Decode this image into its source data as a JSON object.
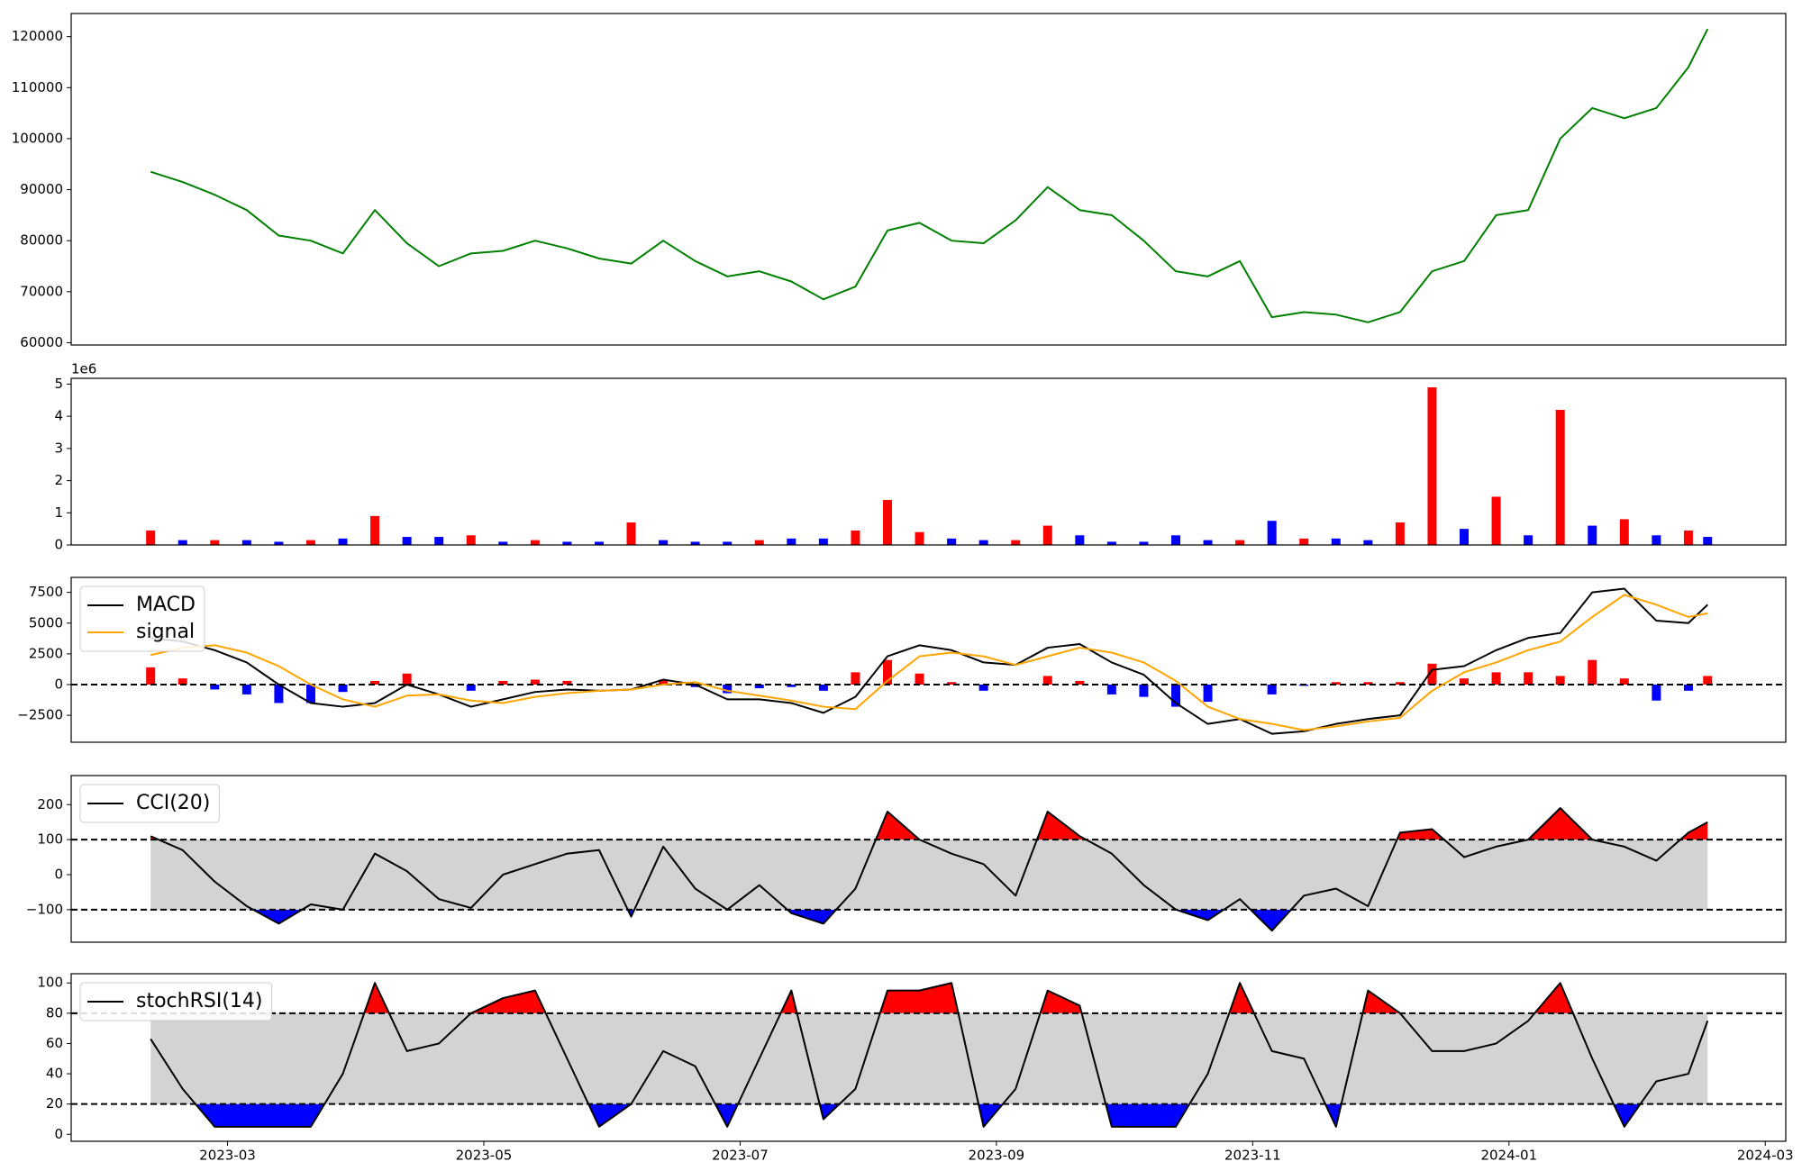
{
  "chart_data": [
    {
      "type": "line",
      "x": [
        2.4,
        2.65,
        2.9,
        3.15,
        3.4,
        3.65,
        3.9,
        4.15,
        4.4,
        4.65,
        4.9,
        5.15,
        5.4,
        5.65,
        5.9,
        6.15,
        6.4,
        6.65,
        6.9,
        7.15,
        7.4,
        7.65,
        7.9,
        8.15,
        8.4,
        8.65,
        8.9,
        9.15,
        9.4,
        9.65,
        9.9,
        10.15,
        10.4,
        10.65,
        10.9,
        11.15,
        11.4,
        11.65,
        11.9,
        12.15,
        12.4,
        12.65,
        12.9,
        13.15,
        13.4,
        13.65,
        13.9,
        14.15,
        14.4,
        14.55
      ],
      "series": [
        {
          "color": "#008000",
          "values": [
            93500,
            91500,
            89000,
            86000,
            81000,
            80000,
            77500,
            86000,
            79500,
            75000,
            77500,
            78000,
            80000,
            78500,
            76500,
            75500,
            80000,
            76000,
            73000,
            74000,
            72000,
            68500,
            71000,
            82000,
            83500,
            80000,
            79500,
            84000,
            90500,
            86000,
            85000,
            80000,
            74000,
            73000,
            76000,
            65000,
            66000,
            65500,
            64000,
            66000,
            74000,
            76000,
            85000,
            86000,
            100000,
            106000,
            104000,
            106000,
            114000,
            121500
          ]
        }
      ],
      "xlim": [
        1.78,
        15.16
      ],
      "ylim": [
        59550,
        124530
      ],
      "yticks": [
        60000,
        70000,
        80000,
        90000,
        100000,
        110000,
        120000
      ]
    },
    {
      "type": "bar",
      "x": [
        2.4,
        2.65,
        2.9,
        3.15,
        3.4,
        3.65,
        3.9,
        4.15,
        4.4,
        4.65,
        4.9,
        5.15,
        5.4,
        5.65,
        5.9,
        6.15,
        6.4,
        6.65,
        6.9,
        7.15,
        7.4,
        7.65,
        7.9,
        8.15,
        8.4,
        8.65,
        8.9,
        9.15,
        9.4,
        9.65,
        9.9,
        10.15,
        10.4,
        10.65,
        10.9,
        11.15,
        11.4,
        11.65,
        11.9,
        12.15,
        12.4,
        12.65,
        12.9,
        13.15,
        13.4,
        13.65,
        13.9,
        14.15,
        14.4,
        14.55
      ],
      "values": [
        0.45,
        0.15,
        0.15,
        0.15,
        0.1,
        0.15,
        0.2,
        0.9,
        0.25,
        0.25,
        0.3,
        0.1,
        0.15,
        0.1,
        0.1,
        0.7,
        0.15,
        0.1,
        0.1,
        0.15,
        0.2,
        0.2,
        0.45,
        1.4,
        0.4,
        0.2,
        0.15,
        0.15,
        0.6,
        0.3,
        0.1,
        0.1,
        0.3,
        0.15,
        0.15,
        0.75,
        0.2,
        0.2,
        0.15,
        0.7,
        4.9,
        0.5,
        1.5,
        0.3,
        4.2,
        0.6,
        0.8,
        0.3,
        0.45,
        0.25
      ],
      "colors": [
        "#ff0000",
        "#0000ff",
        "#ff0000",
        "#0000ff",
        "#0000ff",
        "#ff0000",
        "#0000ff",
        "#ff0000",
        "#0000ff",
        "#0000ff",
        "#ff0000",
        "#0000ff",
        "#ff0000",
        "#0000ff",
        "#0000ff",
        "#ff0000",
        "#0000ff",
        "#0000ff",
        "#0000ff",
        "#ff0000",
        "#0000ff",
        "#0000ff",
        "#ff0000",
        "#ff0000",
        "#ff0000",
        "#0000ff",
        "#0000ff",
        "#ff0000",
        "#ff0000",
        "#0000ff",
        "#0000ff",
        "#0000ff",
        "#0000ff",
        "#0000ff",
        "#ff0000",
        "#0000ff",
        "#ff0000",
        "#0000ff",
        "#0000ff",
        "#ff0000",
        "#ff0000",
        "#0000ff",
        "#ff0000",
        "#0000ff",
        "#ff0000",
        "#0000ff",
        "#ff0000",
        "#0000ff",
        "#ff0000",
        "#0000ff"
      ],
      "offset_label": "1e6",
      "xlim": [
        1.78,
        15.16
      ],
      "ylim": [
        0,
        5.18
      ],
      "yticks": [
        0,
        1,
        2,
        3,
        4,
        5
      ]
    },
    {
      "type": "macd",
      "x": [
        2.4,
        2.65,
        2.9,
        3.15,
        3.4,
        3.65,
        3.9,
        4.15,
        4.4,
        4.65,
        4.9,
        5.15,
        5.4,
        5.65,
        5.9,
        6.15,
        6.4,
        6.65,
        6.9,
        7.15,
        7.4,
        7.65,
        7.9,
        8.15,
        8.4,
        8.65,
        8.9,
        9.15,
        9.4,
        9.65,
        9.9,
        10.15,
        10.4,
        10.65,
        10.9,
        11.15,
        11.4,
        11.65,
        11.9,
        12.15,
        12.4,
        12.65,
        12.9,
        13.15,
        13.4,
        13.65,
        13.9,
        14.15,
        14.4,
        14.55
      ],
      "series": [
        {
          "name": "MACD",
          "color": "#000000",
          "values": [
            3800,
            3500,
            2800,
            1800,
            0,
            -1500,
            -1800,
            -1500,
            0,
            -800,
            -1800,
            -1200,
            -600,
            -400,
            -500,
            -400,
            400,
            0,
            -1200,
            -1200,
            -1500,
            -2300,
            -1000,
            2300,
            3200,
            2800,
            1800,
            1600,
            3000,
            3300,
            1800,
            800,
            -1500,
            -3200,
            -2800,
            -4000,
            -3800,
            -3200,
            -2800,
            -2500,
            1200,
            1500,
            2800,
            3800,
            4200,
            7500,
            7800,
            5200,
            5000,
            6500
          ]
        },
        {
          "name": "signal",
          "color": "#ffa500",
          "values": [
            2400,
            3000,
            3200,
            2600,
            1500,
            0,
            -1200,
            -1800,
            -900,
            -800,
            -1300,
            -1500,
            -1000,
            -700,
            -500,
            -400,
            0,
            200,
            -500,
            -900,
            -1300,
            -1800,
            -2000,
            300,
            2300,
            2600,
            2300,
            1600,
            2300,
            3000,
            2600,
            1800,
            300,
            -1800,
            -2800,
            -3200,
            -3700,
            -3400,
            -3000,
            -2700,
            -500,
            1000,
            1800,
            2800,
            3500,
            5500,
            7300,
            6500,
            5500,
            5800
          ]
        }
      ],
      "histogram": {
        "values": [
          1400,
          500,
          -400,
          -800,
          -1500,
          -1500,
          -600,
          300,
          900,
          0,
          -500,
          300,
          400,
          300,
          0,
          0,
          400,
          -200,
          -700,
          -300,
          -200,
          -500,
          1000,
          2000,
          900,
          200,
          -500,
          0,
          700,
          300,
          -800,
          -1000,
          -1800,
          -1400,
          0,
          -800,
          -100,
          200,
          200,
          200,
          1700,
          500,
          1000,
          1000,
          700,
          2000,
          500,
          -1300,
          -500,
          700
        ],
        "positive_color": "#ff0000",
        "negative_color": "#0000ff"
      },
      "hline": 0,
      "legend": "upper left",
      "xlim": [
        1.78,
        15.16
      ],
      "ylim": [
        -4690,
        8720
      ],
      "yticks": [
        {
          "value": -2500,
          "label": "−2500"
        },
        0,
        2500,
        5000,
        7500
      ]
    },
    {
      "type": "band",
      "x": [
        2.4,
        2.65,
        2.9,
        3.15,
        3.4,
        3.65,
        3.9,
        4.15,
        4.4,
        4.65,
        4.9,
        5.15,
        5.4,
        5.65,
        5.9,
        6.15,
        6.4,
        6.65,
        6.9,
        7.15,
        7.4,
        7.65,
        7.9,
        8.15,
        8.4,
        8.65,
        8.9,
        9.15,
        9.4,
        9.65,
        9.9,
        10.15,
        10.4,
        10.65,
        10.9,
        11.15,
        11.4,
        11.65,
        11.9,
        12.15,
        12.4,
        12.65,
        12.9,
        13.15,
        13.4,
        13.65,
        13.9,
        14.15,
        14.4,
        14.55
      ],
      "series": [
        {
          "name": "CCI(20)",
          "color": "#000000",
          "values": [
            110,
            70,
            -20,
            -90,
            -140,
            -85,
            -100,
            60,
            10,
            -70,
            -95,
            0,
            30,
            60,
            70,
            -120,
            80,
            -40,
            -100,
            -30,
            -110,
            -140,
            -40,
            180,
            100,
            60,
            30,
            -60,
            180,
            110,
            60,
            -30,
            -100,
            -130,
            -70,
            -160,
            -60,
            -40,
            -90,
            120,
            130,
            50,
            80,
            100,
            190,
            100,
            80,
            40,
            120,
            150
          ]
        }
      ],
      "thresholds": [
        -100,
        100
      ],
      "band_color": "#d3d3d3",
      "upper_color": "#ff0000",
      "lower_color": "#0000ff",
      "legend": "upper left",
      "xlim": [
        1.78,
        15.16
      ],
      "ylim": [
        -193,
        283
      ],
      "yticks": [
        {
          "value": -100,
          "label": "−100"
        },
        0,
        100,
        200
      ]
    },
    {
      "type": "band",
      "x": [
        2.4,
        2.65,
        2.9,
        3.15,
        3.4,
        3.65,
        3.9,
        4.15,
        4.4,
        4.65,
        4.9,
        5.15,
        5.4,
        5.65,
        5.9,
        6.15,
        6.4,
        6.65,
        6.9,
        7.15,
        7.4,
        7.65,
        7.9,
        8.15,
        8.4,
        8.65,
        8.9,
        9.15,
        9.4,
        9.65,
        9.9,
        10.15,
        10.4,
        10.65,
        10.9,
        11.15,
        11.4,
        11.65,
        11.9,
        12.15,
        12.4,
        12.65,
        12.9,
        13.15,
        13.4,
        13.65,
        13.9,
        14.15,
        14.4,
        14.55
      ],
      "series": [
        {
          "name": "stochRSI(14)",
          "color": "#000000",
          "values": [
            63,
            30,
            5,
            5,
            5,
            5,
            40,
            100,
            55,
            60,
            80,
            90,
            95,
            50,
            5,
            20,
            55,
            45,
            5,
            50,
            95,
            10,
            30,
            95,
            95,
            100,
            5,
            30,
            95,
            85,
            5,
            5,
            5,
            40,
            100,
            55,
            50,
            5,
            95,
            80,
            55,
            55,
            60,
            75,
            100,
            50,
            5,
            35,
            40,
            75
          ]
        }
      ],
      "thresholds": [
        20,
        80
      ],
      "band_color": "#d3d3d3",
      "upper_color": "#ff0000",
      "lower_color": "#0000ff",
      "legend": "upper left",
      "xlim": [
        1.78,
        15.16
      ],
      "ylim": [
        -4.6,
        106.1
      ],
      "yticks": [
        0,
        20,
        40,
        60,
        80,
        100
      ],
      "xticks": [
        {
          "value": 3,
          "label": "2023-03"
        },
        {
          "value": 5,
          "label": "2023-05"
        },
        {
          "value": 7,
          "label": "2023-07"
        },
        {
          "value": 9,
          "label": "2023-09"
        },
        {
          "value": 11,
          "label": "2023-11"
        },
        {
          "value": 13,
          "label": "2024-01"
        },
        {
          "value": 15,
          "label": "2024-03"
        }
      ]
    }
  ]
}
